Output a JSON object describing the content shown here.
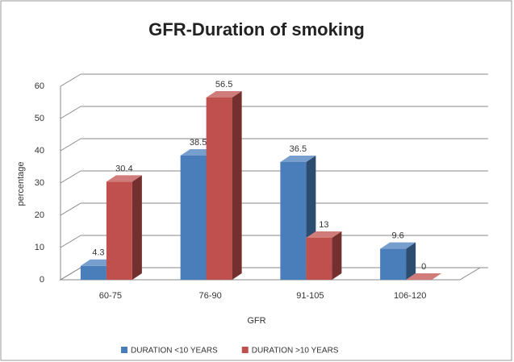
{
  "chart_data": {
    "type": "bar3d",
    "title": "GFR-Duration of smoking",
    "x_label": "GFR",
    "y_label": "percentage",
    "categories": [
      "60-75",
      "76-90",
      "91-105",
      "106-120"
    ],
    "series": [
      {
        "name": "DURATION <10 YEARS",
        "color": "#4a7ebb",
        "values": [
          4.3,
          38.5,
          36.5,
          9.6
        ]
      },
      {
        "name": "DURATION >10 YEARS",
        "color": "#c0504d",
        "values": [
          30.4,
          56.5,
          13,
          0
        ]
      }
    ],
    "ylim": [
      0,
      60
    ],
    "yticks": [
      0,
      10,
      20,
      30,
      40,
      50,
      60
    ],
    "grid": true,
    "legend": "bottom"
  }
}
